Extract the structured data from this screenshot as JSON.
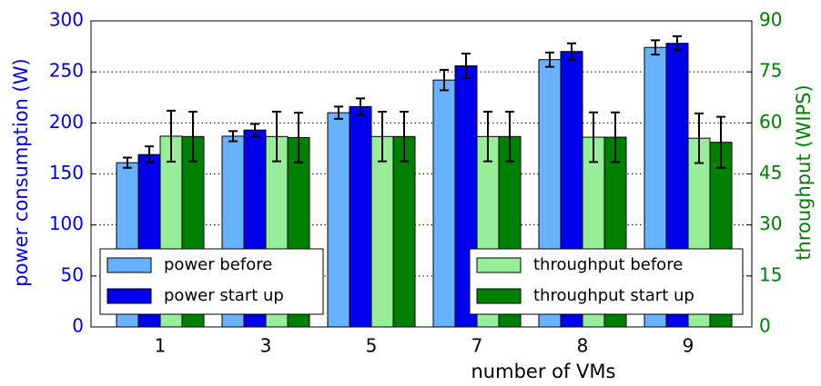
{
  "chart_data": {
    "type": "bar",
    "xlabel": "number of VMs",
    "ylabel": "power consumption (W)",
    "y2label": "throughput (WIPS)",
    "categories": [
      "1",
      "3",
      "5",
      "7",
      "8",
      "9"
    ],
    "ylim": [
      0,
      300
    ],
    "yticks": [
      0,
      50,
      100,
      150,
      200,
      250,
      300
    ],
    "y2lim": [
      0,
      90
    ],
    "y2ticks": [
      0,
      15,
      30,
      45,
      60,
      75,
      90
    ],
    "grid": true,
    "series": [
      {
        "name": "power before",
        "color": "#66b2ff",
        "axis": "y",
        "legend": "lower left",
        "values": [
          161,
          187,
          210,
          242,
          262,
          274
        ],
        "errors": [
          5,
          5,
          6,
          10,
          7,
          7
        ]
      },
      {
        "name": "power start up",
        "color": "#0000ee",
        "axis": "y",
        "legend": "lower left",
        "values": [
          169,
          193,
          216,
          256,
          270,
          278
        ],
        "errors": [
          8,
          6,
          8,
          12,
          8,
          7
        ]
      },
      {
        "name": "throughput before",
        "color": "#98ee98",
        "axis": "y2",
        "legend": "lower right",
        "values": [
          56.1,
          56,
          56,
          56,
          55.8,
          55.5
        ],
        "errors": [
          7.5,
          7.3,
          7.3,
          7.3,
          7.3,
          7.3
        ]
      },
      {
        "name": "throughput start up",
        "color": "#008000",
        "axis": "y2",
        "legend": "lower right",
        "values": [
          56,
          55.7,
          56,
          56,
          55.8,
          54.3
        ],
        "errors": [
          7.3,
          7.3,
          7.3,
          7.3,
          7.3,
          7.5
        ]
      }
    ]
  }
}
